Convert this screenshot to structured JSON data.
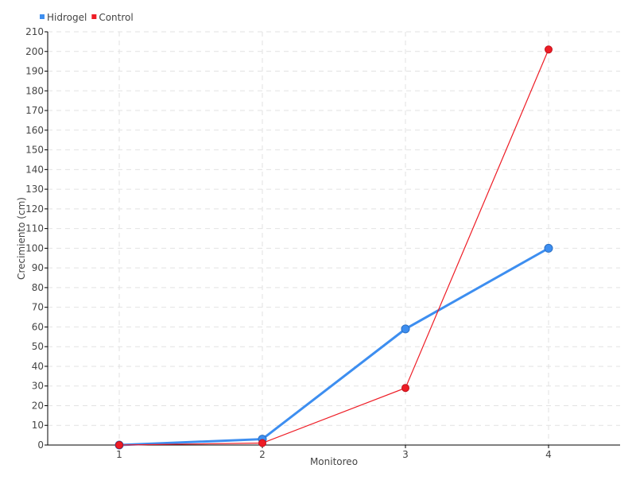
{
  "chart_data": {
    "type": "line",
    "title": "",
    "xlabel": "Monitoreo",
    "ylabel": "Crecimiento (cm)",
    "categories": [
      "1",
      "2",
      "3",
      "4"
    ],
    "x": [
      1,
      2,
      3,
      4
    ],
    "xlim": [
      0.5,
      4.5
    ],
    "ylim": [
      0,
      210
    ],
    "ytick_step": 10,
    "grid": true,
    "legend_placement": "top-left",
    "series": [
      {
        "name": "Hidrogel",
        "color": "#3d8ef0",
        "values": [
          0,
          3,
          59,
          100
        ]
      },
      {
        "name": "Control",
        "color": "#ee1c25",
        "values": [
          0,
          1,
          29,
          201
        ]
      }
    ]
  }
}
